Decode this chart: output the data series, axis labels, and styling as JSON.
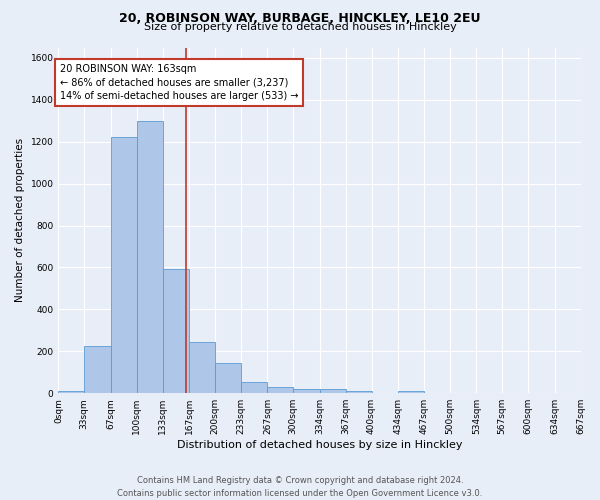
{
  "title_line1": "20, ROBINSON WAY, BURBAGE, HINCKLEY, LE10 2EU",
  "title_line2": "Size of property relative to detached houses in Hinckley",
  "xlabel": "Distribution of detached houses by size in Hinckley",
  "ylabel": "Number of detached properties",
  "bar_color": "#aec6e8",
  "bar_edge_color": "#5b9bd5",
  "background_color": "#e8eef8",
  "grid_color": "#ffffff",
  "bin_edges": [
    0,
    33,
    67,
    100,
    133,
    167,
    200,
    233,
    267,
    300,
    334,
    367,
    400,
    434,
    467,
    500,
    534,
    567,
    600,
    634,
    667
  ],
  "bin_labels": [
    "0sqm",
    "33sqm",
    "67sqm",
    "100sqm",
    "133sqm",
    "167sqm",
    "200sqm",
    "233sqm",
    "267sqm",
    "300sqm",
    "334sqm",
    "367sqm",
    "400sqm",
    "434sqm",
    "467sqm",
    "500sqm",
    "534sqm",
    "567sqm",
    "600sqm",
    "634sqm",
    "667sqm"
  ],
  "counts": [
    10,
    225,
    1225,
    1300,
    595,
    245,
    145,
    52,
    30,
    22,
    22,
    12,
    0,
    10,
    0,
    0,
    0,
    0,
    0,
    0
  ],
  "property_size": 163,
  "vline_color": "#c0392b",
  "annotation_text": "20 ROBINSON WAY: 163sqm\n← 86% of detached houses are smaller (3,237)\n14% of semi-detached houses are larger (533) →",
  "annotation_box_color": "#ffffff",
  "annotation_box_edge": "#c0392b",
  "ylim": [
    0,
    1650
  ],
  "yticks": [
    0,
    200,
    400,
    600,
    800,
    1000,
    1200,
    1400,
    1600
  ],
  "footer_line1": "Contains HM Land Registry data © Crown copyright and database right 2024.",
  "footer_line2": "Contains public sector information licensed under the Open Government Licence v3.0.",
  "title1_fontsize": 9,
  "title2_fontsize": 8,
  "xlabel_fontsize": 8,
  "ylabel_fontsize": 7.5,
  "tick_fontsize": 6.5,
  "annot_fontsize": 7,
  "footer_fontsize": 6
}
